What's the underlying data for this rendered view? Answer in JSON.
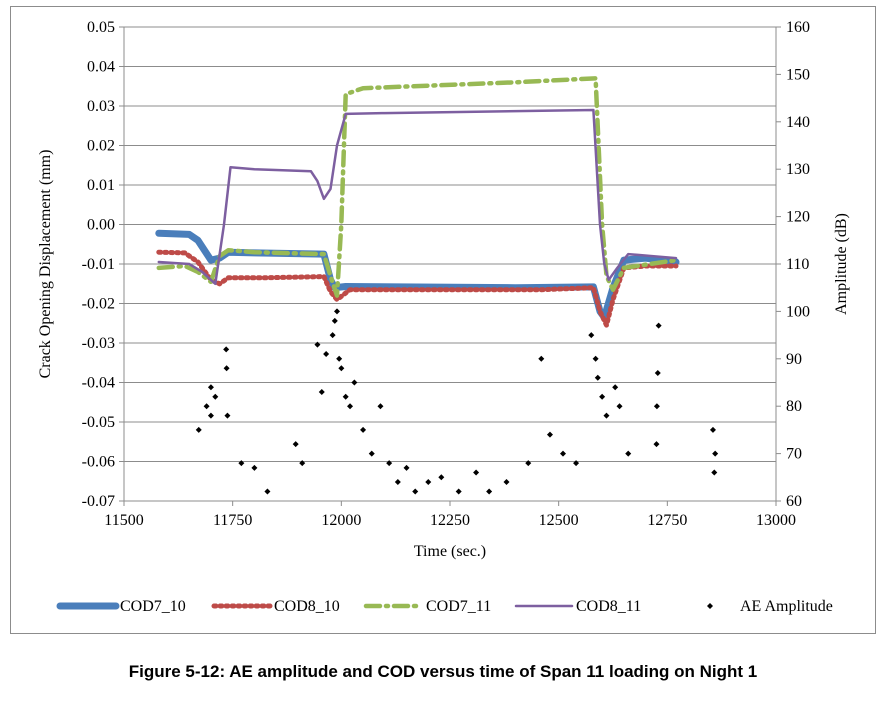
{
  "caption": "Figure 5-12:  AE amplitude and COD versus time of Span 11 loading on Night 1",
  "chart_data": {
    "type": "scatter",
    "xlabel": "Time (sec.)",
    "ylabel": "Crack Opening Displacement (mm)",
    "y2label": "Amplitude (dB)",
    "xlim": [
      11500,
      13000
    ],
    "ylim": [
      -0.07,
      0.05
    ],
    "y2lim": [
      60,
      160
    ],
    "xticks": [
      "11500",
      "11750",
      "12000",
      "12250",
      "12500",
      "12750",
      "13000"
    ],
    "yticks": [
      "-0.07",
      "-0.06",
      "-0.05",
      "-0.04",
      "-0.03",
      "-0.02",
      "-0.01",
      "0.00",
      "0.01",
      "0.02",
      "0.03",
      "0.04",
      "0.05"
    ],
    "y2ticks": [
      "60",
      "70",
      "80",
      "90",
      "100",
      "110",
      "120",
      "130",
      "140",
      "150",
      "160"
    ],
    "grid": "horizontal",
    "legend_position": "bottom",
    "series": [
      {
        "name": "COD7_10",
        "color": "#4a7ebb",
        "style": "thick-solid",
        "axis": "left",
        "points": [
          [
            11580,
            -0.0022
          ],
          [
            11650,
            -0.0025
          ],
          [
            11670,
            -0.004
          ],
          [
            11700,
            -0.009
          ],
          [
            11720,
            -0.0085
          ],
          [
            11740,
            -0.007
          ],
          [
            11800,
            -0.0072
          ],
          [
            11960,
            -0.0075
          ],
          [
            11975,
            -0.014
          ],
          [
            11985,
            -0.016
          ],
          [
            12010,
            -0.0157
          ],
          [
            12400,
            -0.016
          ],
          [
            12580,
            -0.0158
          ],
          [
            12595,
            -0.022
          ],
          [
            12605,
            -0.0235
          ],
          [
            12625,
            -0.016
          ],
          [
            12650,
            -0.009
          ],
          [
            12700,
            -0.0085
          ],
          [
            12770,
            -0.0095
          ]
        ]
      },
      {
        "name": "COD8_10",
        "color": "#be4b48",
        "style": "dotted",
        "axis": "left",
        "points": [
          [
            11580,
            -0.007
          ],
          [
            11640,
            -0.0072
          ],
          [
            11670,
            -0.0095
          ],
          [
            11700,
            -0.014
          ],
          [
            11720,
            -0.015
          ],
          [
            11740,
            -0.0135
          ],
          [
            11820,
            -0.0135
          ],
          [
            11960,
            -0.0132
          ],
          [
            11975,
            -0.017
          ],
          [
            11990,
            -0.019
          ],
          [
            12020,
            -0.0165
          ],
          [
            12460,
            -0.0165
          ],
          [
            12580,
            -0.016
          ],
          [
            12595,
            -0.022
          ],
          [
            12610,
            -0.0255
          ],
          [
            12625,
            -0.019
          ],
          [
            12650,
            -0.011
          ],
          [
            12700,
            -0.0105
          ],
          [
            12770,
            -0.0105
          ]
        ]
      },
      {
        "name": "COD7_11",
        "color": "#98b954",
        "style": "dash-dot",
        "axis": "left",
        "points": [
          [
            11580,
            -0.011
          ],
          [
            11640,
            -0.0105
          ],
          [
            11670,
            -0.012
          ],
          [
            11700,
            -0.0145
          ],
          [
            11720,
            -0.008
          ],
          [
            11740,
            -0.0065
          ],
          [
            11800,
            -0.007
          ],
          [
            11960,
            -0.0075
          ],
          [
            11975,
            -0.013
          ],
          [
            11990,
            -0.018
          ],
          [
            12000,
            0.0
          ],
          [
            12010,
            0.033
          ],
          [
            12050,
            0.0345
          ],
          [
            12400,
            0.036
          ],
          [
            12585,
            0.037
          ],
          [
            12600,
            0.0
          ],
          [
            12610,
            -0.013
          ],
          [
            12625,
            -0.0165
          ],
          [
            12650,
            -0.011
          ],
          [
            12770,
            -0.009
          ]
        ]
      },
      {
        "name": "COD8_11",
        "color": "#7d5fa0",
        "style": "solid",
        "axis": "left",
        "points": [
          [
            11580,
            -0.0095
          ],
          [
            11650,
            -0.01
          ],
          [
            11680,
            -0.012
          ],
          [
            11710,
            -0.015
          ],
          [
            11730,
            0.0
          ],
          [
            11745,
            0.0145
          ],
          [
            11800,
            0.014
          ],
          [
            11930,
            0.0135
          ],
          [
            11945,
            0.011
          ],
          [
            11960,
            0.0065
          ],
          [
            11975,
            0.009
          ],
          [
            11990,
            0.02
          ],
          [
            12010,
            0.028
          ],
          [
            12100,
            0.0282
          ],
          [
            12580,
            0.029
          ],
          [
            12595,
            0.0
          ],
          [
            12605,
            -0.01
          ],
          [
            12615,
            -0.014
          ],
          [
            12635,
            -0.011
          ],
          [
            12660,
            -0.0075
          ],
          [
            12770,
            -0.0085
          ]
        ]
      },
      {
        "name": "AE Amplitude",
        "color": "#000000",
        "style": "markers",
        "axis": "right",
        "points": [
          [
            11672,
            75
          ],
          [
            11690,
            80
          ],
          [
            11700,
            78
          ],
          [
            11710,
            82
          ],
          [
            11735,
            92
          ],
          [
            11736,
            88
          ],
          [
            11738,
            78
          ],
          [
            11700,
            84
          ],
          [
            11770,
            68
          ],
          [
            11800,
            67
          ],
          [
            11830,
            62
          ],
          [
            11895,
            72
          ],
          [
            11910,
            68
          ],
          [
            11945,
            93
          ],
          [
            11955,
            83
          ],
          [
            11965,
            91
          ],
          [
            11980,
            95
          ],
          [
            11985,
            98
          ],
          [
            11990,
            100
          ],
          [
            11995,
            90
          ],
          [
            12000,
            88
          ],
          [
            12010,
            82
          ],
          [
            12020,
            80
          ],
          [
            12030,
            85
          ],
          [
            12050,
            75
          ],
          [
            12070,
            70
          ],
          [
            12090,
            80
          ],
          [
            12110,
            68
          ],
          [
            12130,
            64
          ],
          [
            12150,
            67
          ],
          [
            12170,
            62
          ],
          [
            12200,
            64
          ],
          [
            12230,
            65
          ],
          [
            12270,
            62
          ],
          [
            12310,
            66
          ],
          [
            12340,
            62
          ],
          [
            12380,
            64
          ],
          [
            12430,
            68
          ],
          [
            12460,
            90
          ],
          [
            12480,
            74
          ],
          [
            12510,
            70
          ],
          [
            12540,
            68
          ],
          [
            12575,
            95
          ],
          [
            12585,
            90
          ],
          [
            12590,
            86
          ],
          [
            12600,
            82
          ],
          [
            12610,
            78
          ],
          [
            12630,
            84
          ],
          [
            12640,
            80
          ],
          [
            12660,
            70
          ],
          [
            12730,
            97
          ],
          [
            12728,
            87
          ],
          [
            12726,
            80
          ],
          [
            12725,
            72
          ],
          [
            12855,
            75
          ],
          [
            12860,
            70
          ],
          [
            12858,
            66
          ]
        ]
      }
    ]
  }
}
